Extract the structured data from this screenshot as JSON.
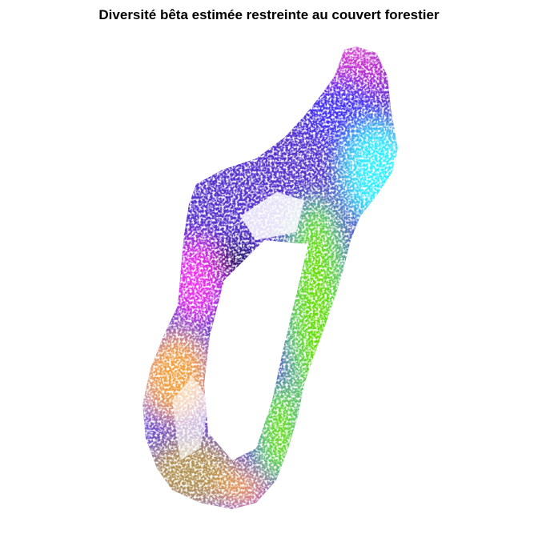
{
  "title": "Diversité bêta estimée restreinte au couvert forestier",
  "map": {
    "subject": "Madagascar forest cover beta diversity (RGB composite)",
    "legend": null,
    "axes": null,
    "colors": {
      "north_tip": "#cc33cc",
      "northeast": "#4433ee",
      "northeast_coast": "#33eeff",
      "east": "#66dd11",
      "center_dark": "#001144",
      "west": "#5533cc",
      "west_magenta": "#ee33ee",
      "southwest": "#f0a040",
      "south": "#b09050",
      "south_tip": "#ff3388",
      "background": "#ffffff"
    }
  }
}
